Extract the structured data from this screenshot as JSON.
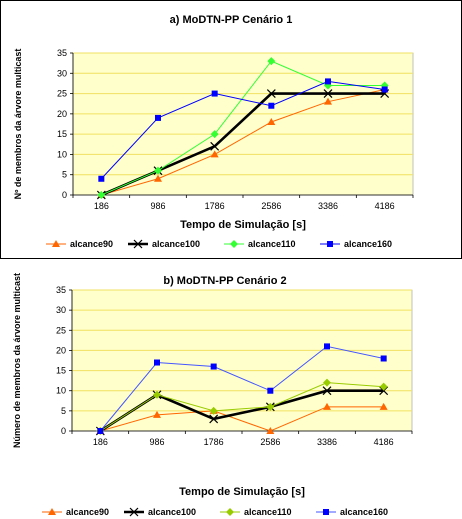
{
  "colors": {
    "plot_bg": "#FFFFCC",
    "grid": "#F0E060",
    "alcance90": "#FF6600",
    "alcance100": "#000000",
    "alcance110_1": "#33FF33",
    "alcance110_2": "#99CC00",
    "alcance160": "#0000FF",
    "alcance160_line_2": "#4455FF"
  },
  "chart_data": [
    {
      "type": "line",
      "title": "a) MoDTN-PP  Cenário 1",
      "xlabel": "Tempo de Simulação [s]",
      "ylabel": "Nº de membros da árvore multicast",
      "categories": [
        "186",
        "986",
        "1786",
        "2586",
        "3386",
        "4186"
      ],
      "ylim": [
        0,
        35
      ],
      "yticks": [
        "0",
        "5",
        "10",
        "15",
        "20",
        "25",
        "30",
        "35"
      ],
      "grid": true,
      "legend_position": "bottom",
      "series": [
        {
          "name": "alcance90",
          "values": [
            0,
            4,
            10,
            18,
            23,
            26
          ]
        },
        {
          "name": "alcance100",
          "values": [
            0,
            6,
            12,
            25,
            25,
            25
          ]
        },
        {
          "name": "alcance110",
          "values": [
            0,
            6,
            15,
            33,
            27,
            27
          ]
        },
        {
          "name": "alcance160",
          "values": [
            4,
            19,
            25,
            22,
            28,
            26
          ]
        }
      ]
    },
    {
      "type": "line",
      "title": "b) MoDTN-PP  Cenário 2",
      "xlabel": "Tempo de Simulação [s]",
      "ylabel": "Número de membros da árvore multicast",
      "categories": [
        "186",
        "986",
        "1786",
        "2586",
        "3386",
        "4186"
      ],
      "ylim": [
        0,
        35
      ],
      "yticks": [
        "0",
        "5",
        "10",
        "15",
        "20",
        "25",
        "30",
        "35"
      ],
      "grid": true,
      "legend_position": "bottom",
      "series": [
        {
          "name": "alcance90",
          "values": [
            0,
            4,
            5,
            0,
            6,
            6
          ]
        },
        {
          "name": "alcance100",
          "values": [
            0,
            9,
            3,
            6,
            10,
            10
          ]
        },
        {
          "name": "alcance110",
          "values": [
            0,
            9,
            5,
            6,
            12,
            11
          ]
        },
        {
          "name": "alcance160",
          "values": [
            0,
            17,
            16,
            10,
            21,
            18
          ]
        }
      ]
    }
  ]
}
